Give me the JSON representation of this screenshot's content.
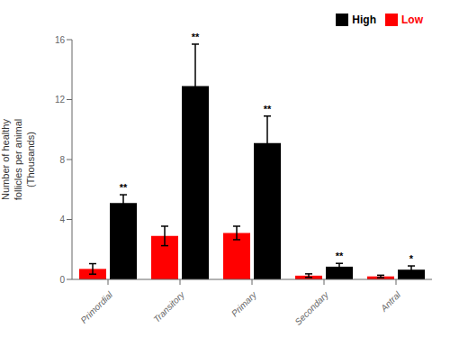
{
  "chart_data": {
    "type": "bar",
    "categories": [
      "Primordial",
      "Transitory",
      "Primary",
      "Secondary",
      "Antral"
    ],
    "series": [
      {
        "name": "Low",
        "color": "#ff0000",
        "values": [
          0.7,
          2.9,
          3.1,
          0.25,
          0.2
        ],
        "errors": [
          0.35,
          0.65,
          0.45,
          0.12,
          0.08
        ]
      },
      {
        "name": "High",
        "color": "#000000",
        "values": [
          5.1,
          12.9,
          9.1,
          0.85,
          0.65
        ],
        "errors": [
          0.55,
          2.8,
          1.8,
          0.22,
          0.25
        ],
        "annotations": [
          "**",
          "**",
          "**",
          "**",
          "*"
        ]
      }
    ],
    "ylabel": "Number of healthy\nfollicles per animal\n(Thousands)",
    "ylim": [
      0,
      16
    ],
    "yticks": [
      0,
      4,
      8,
      12,
      16
    ],
    "grid": false,
    "legend": "upper right"
  }
}
